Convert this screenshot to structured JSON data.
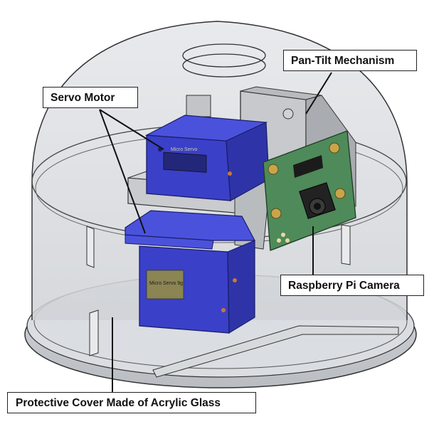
{
  "labels": {
    "pan_tilt": "Pan-Tilt Mechanism",
    "servo_motor": "Servo Motor",
    "raspberry_pi_camera": "Raspberry Pi Camera",
    "protective_cover": "Protective Cover Made of Acrylic Glass"
  },
  "servo_label_text": {
    "top": "Micro Servo",
    "bottom": "Micro Servo 9g"
  },
  "colors": {
    "servo_blue": "#3a40c8",
    "camera_board_green": "#4f8a5a",
    "dome": "#d9dce0",
    "leader_line": "#111111"
  }
}
